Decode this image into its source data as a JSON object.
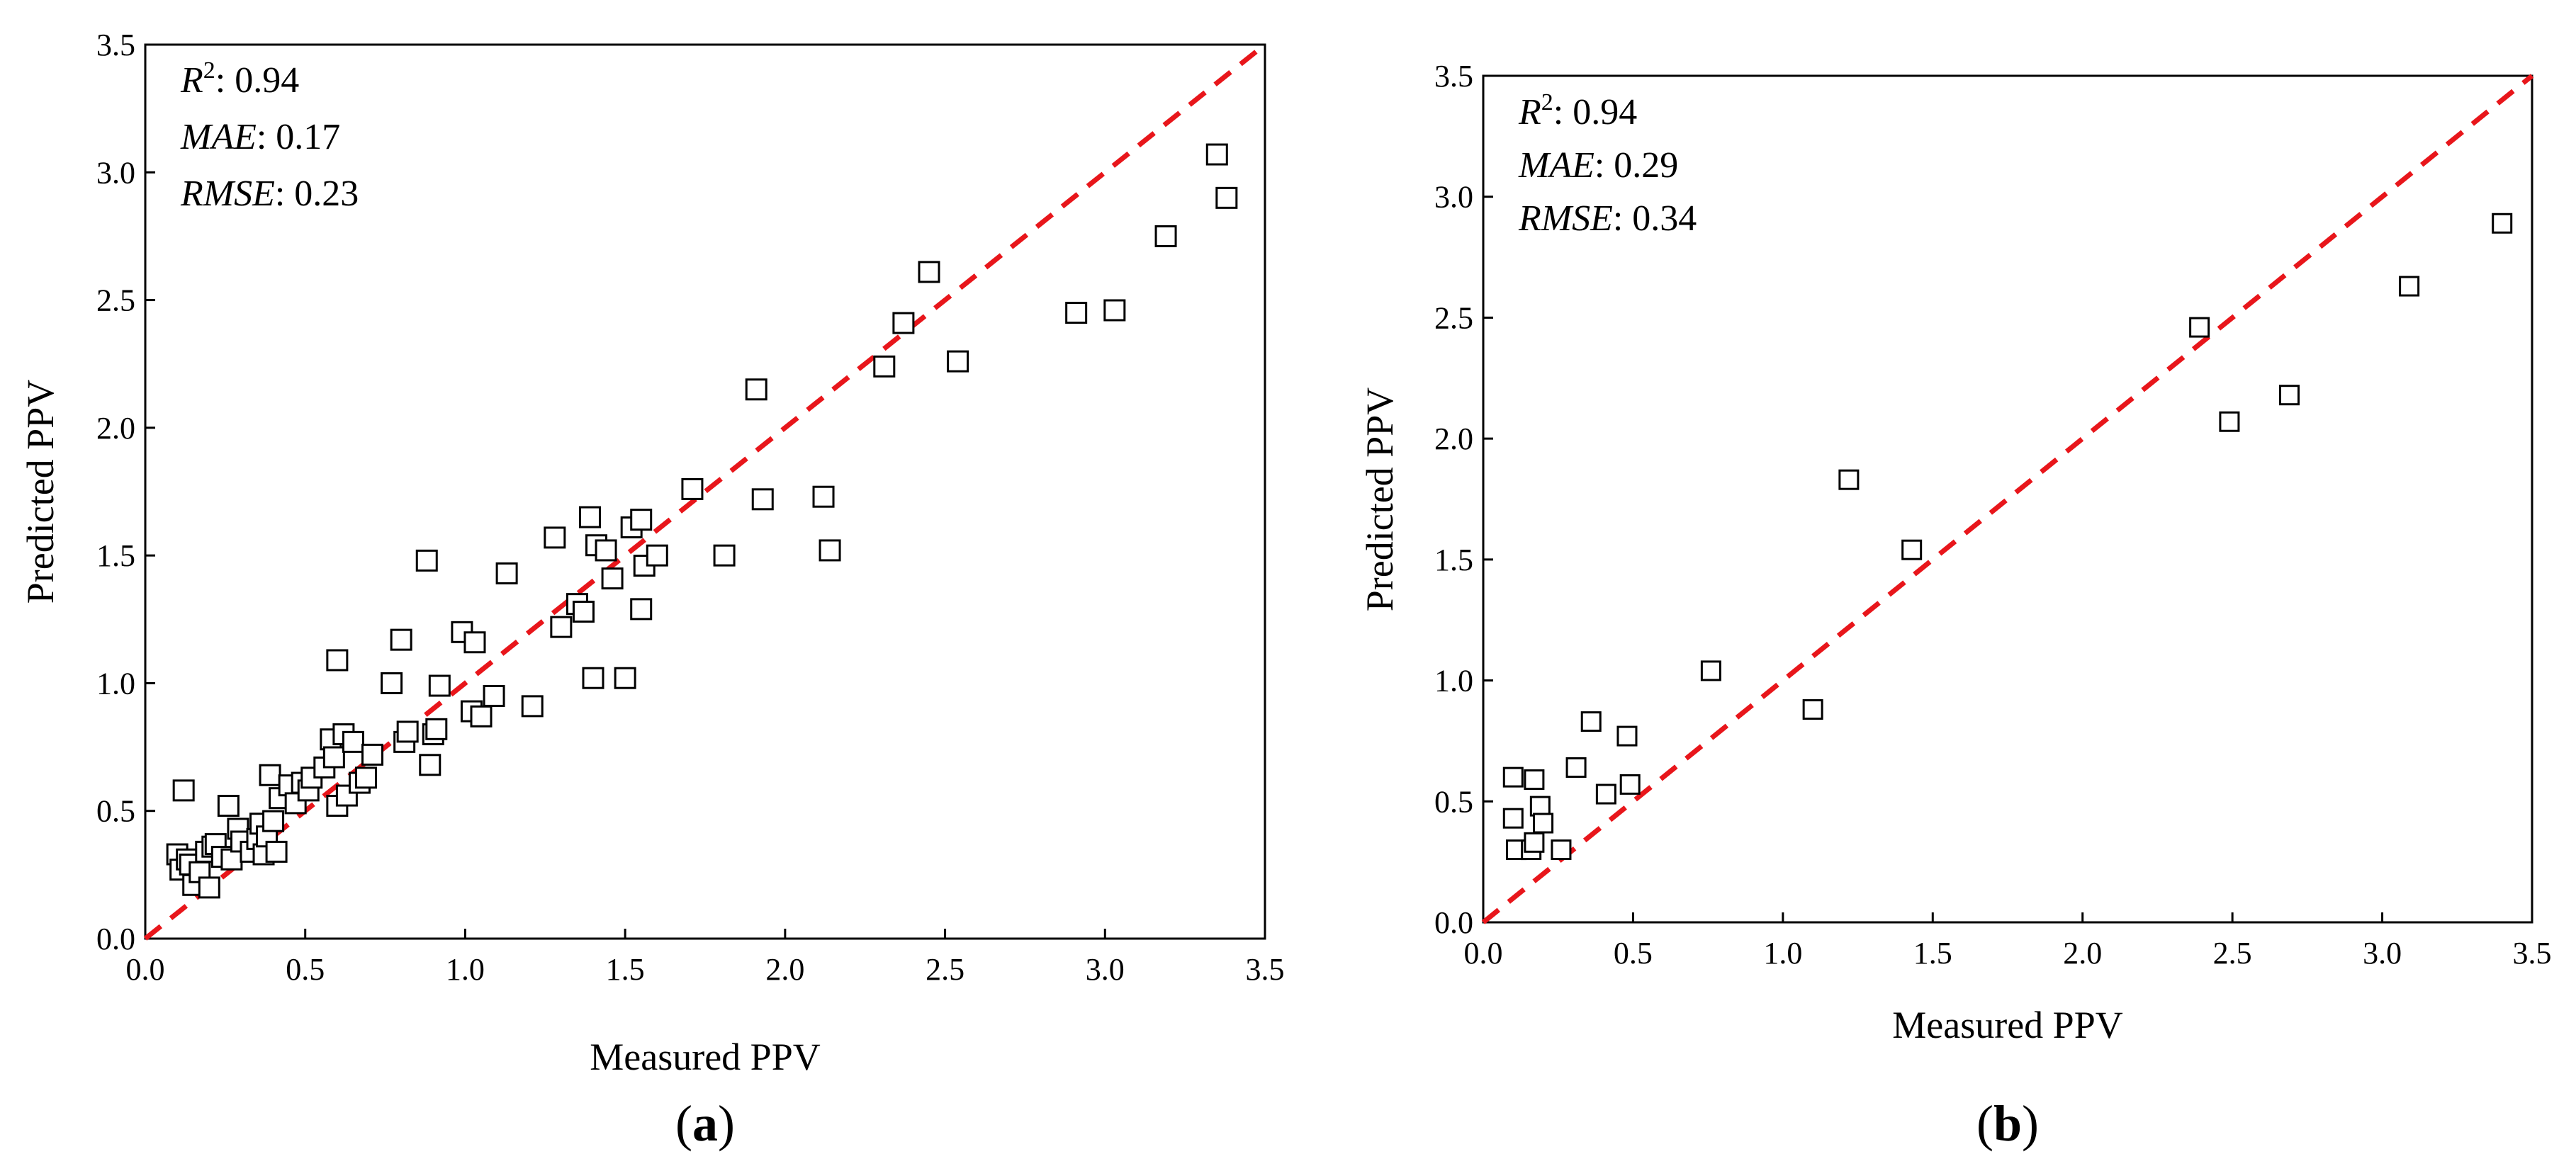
{
  "chart_data": [
    {
      "type": "scatter",
      "caption_letter": "a",
      "xlabel": "Measured PPV",
      "ylabel": "Predicted PPV",
      "xlim": [
        0,
        3.5
      ],
      "ylim": [
        0,
        3.5
      ],
      "xticks": [
        "0.0",
        "0.5",
        "1.0",
        "1.5",
        "2.0",
        "2.5",
        "3.0",
        "3.5"
      ],
      "yticks": [
        "0.0",
        "0.5",
        "1.0",
        "1.5",
        "2.0",
        "2.5",
        "3.0",
        "3.5"
      ],
      "stats": [
        {
          "name": "R",
          "sup": "2",
          "value": ": 0.94"
        },
        {
          "name": "MAE",
          "sup": "",
          "value": ": 0.17"
        },
        {
          "name": "RMSE",
          "sup": "",
          "value": ": 0.23"
        }
      ],
      "reference_line": {
        "from": [
          0,
          0
        ],
        "to": [
          3.5,
          3.5
        ],
        "color": "#e8161b"
      },
      "points": [
        [
          0.1,
          0.33
        ],
        [
          0.11,
          0.27
        ],
        [
          0.12,
          0.58
        ],
        [
          0.13,
          0.31
        ],
        [
          0.14,
          0.29
        ],
        [
          0.15,
          0.21
        ],
        [
          0.17,
          0.26
        ],
        [
          0.19,
          0.34
        ],
        [
          0.2,
          0.2
        ],
        [
          0.21,
          0.36
        ],
        [
          0.22,
          0.37
        ],
        [
          0.24,
          0.32
        ],
        [
          0.26,
          0.52
        ],
        [
          0.27,
          0.31
        ],
        [
          0.29,
          0.43
        ],
        [
          0.3,
          0.38
        ],
        [
          0.33,
          0.34
        ],
        [
          0.35,
          0.39
        ],
        [
          0.36,
          0.45
        ],
        [
          0.37,
          0.33
        ],
        [
          0.38,
          0.4
        ],
        [
          0.39,
          0.64
        ],
        [
          0.4,
          0.46
        ],
        [
          0.41,
          0.34
        ],
        [
          0.42,
          0.55
        ],
        [
          0.45,
          0.6
        ],
        [
          0.47,
          0.53
        ],
        [
          0.49,
          0.61
        ],
        [
          0.51,
          0.58
        ],
        [
          0.52,
          0.63
        ],
        [
          0.56,
          0.67
        ],
        [
          0.58,
          0.78
        ],
        [
          0.59,
          0.71
        ],
        [
          0.6,
          0.52
        ],
        [
          0.6,
          1.09
        ],
        [
          0.62,
          0.8
        ],
        [
          0.63,
          0.56
        ],
        [
          0.65,
          0.77
        ],
        [
          0.67,
          0.61
        ],
        [
          0.69,
          0.63
        ],
        [
          0.71,
          0.72
        ],
        [
          0.77,
          1.0
        ],
        [
          0.8,
          1.17
        ],
        [
          0.81,
          0.77
        ],
        [
          0.82,
          0.81
        ],
        [
          0.88,
          1.48
        ],
        [
          0.89,
          0.68
        ],
        [
          0.9,
          0.8
        ],
        [
          0.91,
          0.82
        ],
        [
          0.92,
          0.99
        ],
        [
          0.99,
          1.2
        ],
        [
          1.02,
          0.89
        ],
        [
          1.03,
          1.16
        ],
        [
          1.05,
          0.87
        ],
        [
          1.09,
          0.95
        ],
        [
          1.13,
          1.43
        ],
        [
          1.21,
          0.91
        ],
        [
          1.28,
          1.57
        ],
        [
          1.3,
          1.22
        ],
        [
          1.35,
          1.31
        ],
        [
          1.37,
          1.28
        ],
        [
          1.39,
          1.65
        ],
        [
          1.4,
          1.02
        ],
        [
          1.41,
          1.54
        ],
        [
          1.44,
          1.52
        ],
        [
          1.46,
          1.41
        ],
        [
          1.5,
          1.02
        ],
        [
          1.52,
          1.61
        ],
        [
          1.55,
          1.64
        ],
        [
          1.55,
          1.29
        ],
        [
          1.56,
          1.46
        ],
        [
          1.6,
          1.5
        ],
        [
          1.71,
          1.76
        ],
        [
          1.81,
          1.5
        ],
        [
          1.91,
          2.15
        ],
        [
          1.93,
          1.72
        ],
        [
          2.12,
          1.73
        ],
        [
          2.14,
          1.52
        ],
        [
          2.31,
          2.24
        ],
        [
          2.37,
          2.41
        ],
        [
          2.45,
          2.61
        ],
        [
          2.54,
          2.26
        ],
        [
          2.91,
          2.45
        ],
        [
          3.03,
          2.46
        ],
        [
          3.19,
          2.75
        ],
        [
          3.35,
          3.07
        ],
        [
          3.38,
          2.9
        ]
      ]
    },
    {
      "type": "scatter",
      "caption_letter": "b",
      "xlabel": "Measured PPV",
      "ylabel": "Predicted PPV",
      "xlim": [
        0,
        3.5
      ],
      "ylim": [
        0,
        3.5
      ],
      "xticks": [
        "0.0",
        "0.5",
        "1.0",
        "1.5",
        "2.0",
        "2.5",
        "3.0",
        "3.5"
      ],
      "yticks": [
        "0.0",
        "0.5",
        "1.0",
        "1.5",
        "2.0",
        "2.5",
        "3.0",
        "3.5"
      ],
      "stats": [
        {
          "name": "R",
          "sup": "2",
          "value": ": 0.94"
        },
        {
          "name": "MAE",
          "sup": "",
          "value": ": 0.29"
        },
        {
          "name": "RMSE",
          "sup": "",
          "value": ": 0.34"
        }
      ],
      "reference_line": {
        "from": [
          0,
          0
        ],
        "to": [
          3.5,
          3.5
        ],
        "color": "#e8161b"
      },
      "points": [
        [
          0.1,
          0.6
        ],
        [
          0.1,
          0.43
        ],
        [
          0.11,
          0.3
        ],
        [
          0.16,
          0.3
        ],
        [
          0.17,
          0.33
        ],
        [
          0.17,
          0.59
        ],
        [
          0.19,
          0.48
        ],
        [
          0.2,
          0.41
        ],
        [
          0.26,
          0.3
        ],
        [
          0.31,
          0.64
        ],
        [
          0.36,
          0.83
        ],
        [
          0.41,
          0.53
        ],
        [
          0.48,
          0.77
        ],
        [
          0.49,
          0.57
        ],
        [
          0.76,
          1.04
        ],
        [
          1.1,
          0.88
        ],
        [
          1.22,
          1.83
        ],
        [
          1.43,
          1.54
        ],
        [
          2.39,
          2.46
        ],
        [
          2.49,
          2.07
        ],
        [
          2.69,
          2.18
        ],
        [
          3.09,
          2.63
        ],
        [
          3.4,
          2.89
        ]
      ]
    }
  ]
}
